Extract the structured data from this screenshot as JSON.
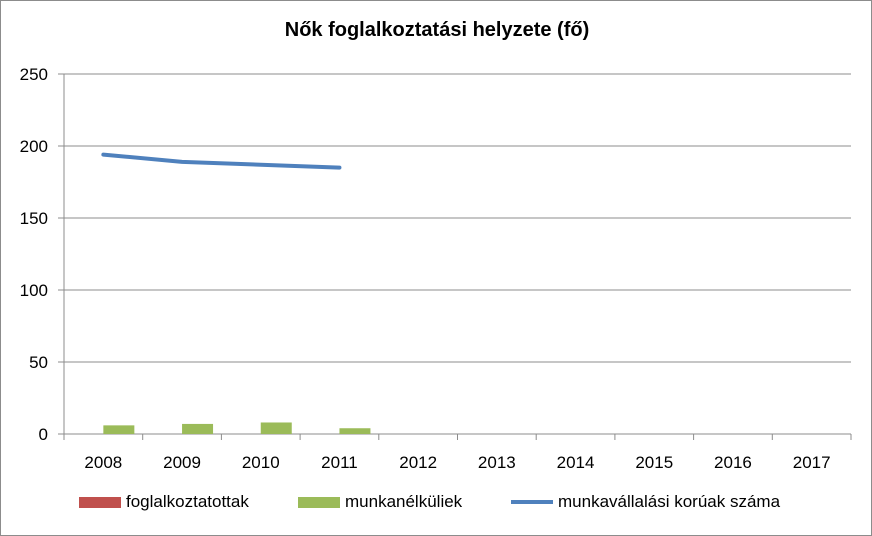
{
  "chart_data": {
    "type": "bar",
    "title": "Nők foglalkoztatási helyzete (fő)",
    "xlabel": "",
    "ylabel": "",
    "categories": [
      "2008",
      "2009",
      "2010",
      "2011",
      "2012",
      "2013",
      "2014",
      "2015",
      "2016",
      "2017"
    ],
    "ylim": [
      0,
      250
    ],
    "yticks": [
      0,
      50,
      100,
      150,
      200,
      250
    ],
    "grid": true,
    "legend_position": "bottom",
    "series": [
      {
        "name": "foglalkoztatottak",
        "kind": "bar",
        "color": "#c0504d",
        "values": [
          null,
          null,
          null,
          null,
          null,
          null,
          null,
          null,
          null,
          null
        ]
      },
      {
        "name": "munkanélküliek",
        "kind": "bar",
        "color": "#9bbb59",
        "values": [
          6,
          7,
          8,
          4,
          null,
          null,
          null,
          null,
          null,
          null
        ]
      },
      {
        "name": "munkavállalási korúak száma",
        "kind": "line",
        "color": "#4f81bd",
        "values": [
          194,
          189,
          187,
          185,
          null,
          null,
          null,
          null,
          null,
          null
        ]
      }
    ]
  }
}
